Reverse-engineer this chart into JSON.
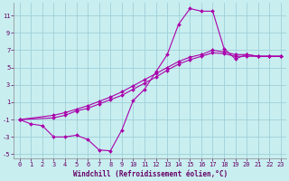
{
  "xlabel": "Windchill (Refroidissement éolien,°C)",
  "background_color": "#c8eef0",
  "grid_color": "#a0d0d8",
  "line_color": "#aa00aa",
  "xlim": [
    -0.5,
    23.5
  ],
  "ylim": [
    -5.5,
    12.5
  ],
  "xticks": [
    0,
    1,
    2,
    3,
    4,
    5,
    6,
    7,
    8,
    9,
    10,
    11,
    12,
    13,
    14,
    15,
    16,
    17,
    18,
    19,
    20,
    21,
    22,
    23
  ],
  "yticks": [
    -5,
    -3,
    -1,
    1,
    3,
    5,
    7,
    9,
    11
  ],
  "series1_x": [
    0,
    1,
    2,
    3,
    4,
    5,
    6,
    7,
    8,
    9,
    10,
    11,
    12,
    13,
    14,
    15,
    16,
    17,
    18,
    19,
    20,
    21,
    22,
    23
  ],
  "series1_y": [
    -1,
    -1.5,
    -1.7,
    -3.0,
    -3.0,
    -2.8,
    -3.3,
    -4.5,
    -4.6,
    -2.2,
    1.2,
    2.5,
    4.5,
    6.5,
    10.0,
    11.8,
    11.5,
    11.5,
    7.2,
    6.0,
    6.5,
    6.3,
    6.3,
    6.3
  ],
  "series2_x": [
    0,
    3,
    4,
    5,
    6,
    7,
    8,
    9,
    10,
    11,
    12,
    13,
    14,
    15,
    16,
    17,
    18,
    19,
    20,
    21,
    22,
    23
  ],
  "series2_y": [
    -1,
    -0.5,
    -0.2,
    0.2,
    0.6,
    1.1,
    1.6,
    2.2,
    2.9,
    3.6,
    4.3,
    5.0,
    5.7,
    6.2,
    6.5,
    7.0,
    6.8,
    6.5,
    6.5,
    6.3,
    6.3,
    6.3
  ],
  "series3_x": [
    0,
    3,
    4,
    5,
    6,
    7,
    8,
    9,
    10,
    11,
    12,
    13,
    14,
    15,
    16,
    17,
    18,
    19,
    20,
    21,
    22,
    23
  ],
  "series3_y": [
    -1,
    -0.8,
    -0.5,
    0.0,
    0.3,
    0.8,
    1.3,
    1.8,
    2.5,
    3.2,
    3.9,
    4.7,
    5.4,
    5.9,
    6.3,
    6.7,
    6.6,
    6.3,
    6.3,
    6.3,
    6.3,
    6.3
  ],
  "marker": "D",
  "markersize": 2.0,
  "linewidth": 0.8,
  "tick_fontsize": 5.0,
  "xlabel_fontsize": 5.5
}
